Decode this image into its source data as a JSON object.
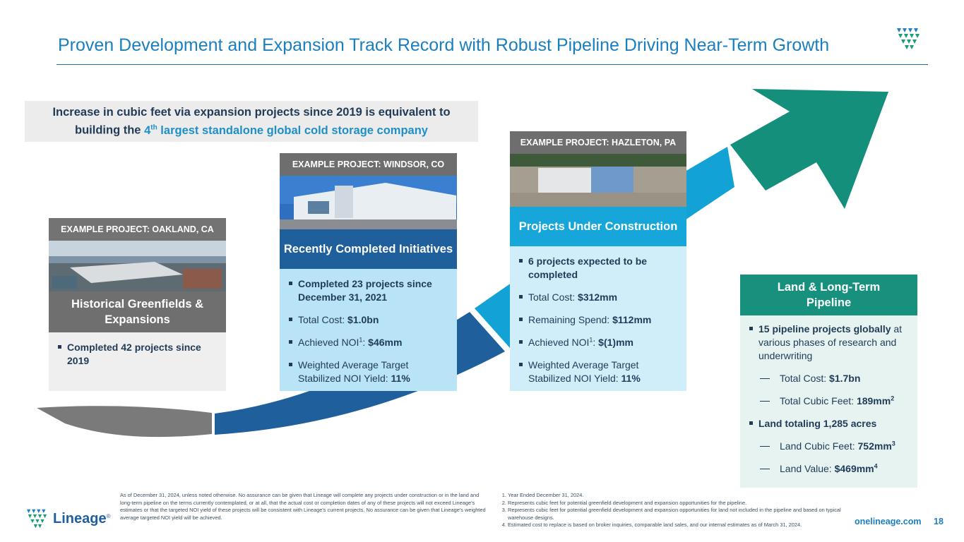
{
  "header": {
    "title": "Proven Development and Expansion Track Record with Robust Pipeline Driving Near-Term Growth"
  },
  "callout": {
    "line1": "Increase in cubic feet via expansion projects since 2019 is equivalent to",
    "line2_pre": "building the ",
    "line2_num": "4",
    "line2_sup": "th",
    "line2_hl": " largest standalone global cold storage company"
  },
  "stages": [
    {
      "project_label": "EXAMPLE PROJECT: OAKLAND, CA",
      "head": "Historical Greenfields & Expansions",
      "bullets": [
        {
          "bold": "Completed 42 projects since 2019"
        }
      ]
    },
    {
      "project_label": "EXAMPLE PROJECT: WINDSOR, CO",
      "head": "Recently Completed Initiatives",
      "bullets": [
        {
          "bold": "Completed 23 projects since December 31, 2021"
        },
        {
          "text": "Total Cost: ",
          "value": "$1.0bn"
        },
        {
          "text": "Achieved NOI",
          "sup": "1",
          "text2": ": ",
          "value": "$46mm"
        },
        {
          "text": "Weighted Average Target Stabilized NOI Yield: ",
          "value": "11%"
        }
      ]
    },
    {
      "project_label": "EXAMPLE PROJECT: HAZLETON, PA",
      "head": "Projects Under Construction",
      "bullets": [
        {
          "bold": "6 projects expected to be completed"
        },
        {
          "text": "Total Cost: ",
          "value": "$312mm"
        },
        {
          "text": "Remaining Spend: ",
          "value": "$112mm"
        },
        {
          "text": "Achieved NOI",
          "sup": "1",
          "text2": ": ",
          "value": "$(1)mm"
        },
        {
          "text": "Weighted Average Target Stabilized NOI Yield: ",
          "value": "11%"
        }
      ]
    },
    {
      "head": "Land & Long-Term Pipeline",
      "bullets": [
        {
          "bold": "15 pipeline projects globally",
          "text": " at various phases of research and underwriting"
        },
        {
          "dash": true,
          "text": "Total Cost: ",
          "value": "$1.7bn"
        },
        {
          "dash": true,
          "text": "Total Cubic Feet: ",
          "value": "189mm",
          "sup": "2"
        },
        {
          "bold": "Land totaling 1,285 acres"
        },
        {
          "dash": true,
          "text": "Land Cubic Feet: ",
          "value": "752mm",
          "sup": "3"
        },
        {
          "dash": true,
          "text": "Land Value: ",
          "value": "$469mm",
          "sup": "4"
        }
      ]
    }
  ],
  "disclaimer": "As of December 31, 2024, unless noted otherwise. No assurance can be given that Lineage will complete any projects under construction or in the land and long-term pipeline on the terms currently contemplated, or at all, that the actual cost or completion dates of any of these projects will not exceed Lineage's estimates or that the targeted NOI yield of these projects will be consistent with Lineage's current projects.  No assurance can be given that Lineage's weighted average targeted NOI yield will be achieved.",
  "footnotes": [
    "Year Ended December 31, 2024.",
    "Represents cubic feet for potential greenfield development and expansion opportunities for the pipeline.",
    "Represents cubic feet for potential greenfield development and expansion opportunities for land not included in the pipeline and based on typical warehouse designs.",
    "Estimated cost to replace is based on broker inquiries, comparable land sales, and our internal estimates as of March 31, 2024."
  ],
  "footer": {
    "logo_text": "Lineage",
    "logo_mark": "®",
    "site": "onelineage.com",
    "page_number": "18"
  },
  "colors": {
    "title": "#1b7fbf",
    "gray_stage": "#6f6f6f",
    "blue_stage": "#1f5f9c",
    "cyan_stage": "#16a6d9",
    "teal_stage": "#17907e",
    "light_blue_panel": "#b9e3f6",
    "light_gray_panel": "#efefef",
    "light_teal_panel": "#e7f3f1"
  }
}
